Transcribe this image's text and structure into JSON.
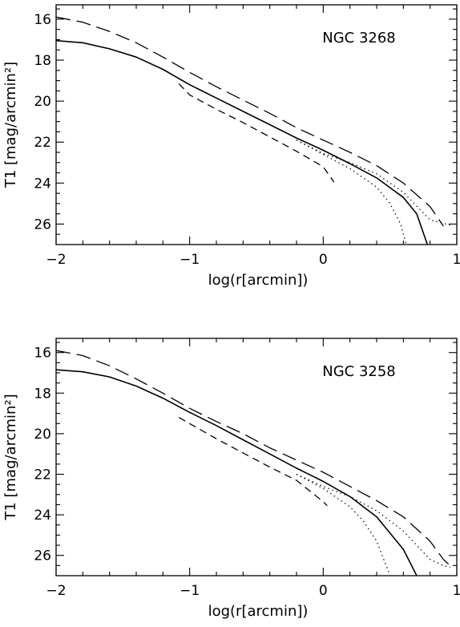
{
  "chart_data": [
    {
      "type": "line",
      "annotation": "NGC 3268",
      "xlabel": "log(r[arcmin])",
      "ylabel": "T1 [mag/arcmin²]",
      "xlim": [
        -2,
        1
      ],
      "ylim": [
        27,
        15.3
      ],
      "y_inverted": true,
      "grid": false,
      "x_ticks": [
        -2,
        -1,
        0,
        1
      ],
      "x_tick_labels": [
        "−2",
        "−1",
        "0",
        "1"
      ],
      "y_ticks": [
        16,
        18,
        20,
        22,
        24,
        26
      ],
      "y_tick_labels": [
        "16",
        "18",
        "20",
        "22",
        "24",
        "26"
      ],
      "series": [
        {
          "style": "solid",
          "x": [
            -2,
            -1.8,
            -1.6,
            -1.4,
            -1.2,
            -1.0,
            -0.8,
            -0.6,
            -0.4,
            -0.2,
            0.0,
            0.2,
            0.4,
            0.6,
            0.7,
            0.78
          ],
          "y": [
            17.05,
            17.15,
            17.45,
            17.85,
            18.45,
            19.2,
            19.85,
            20.5,
            21.15,
            21.8,
            22.4,
            23.05,
            23.75,
            24.7,
            25.5,
            27.0
          ]
        },
        {
          "style": "long-dash",
          "x": [
            -2,
            -1.8,
            -1.6,
            -1.4,
            -1.2,
            -1.0,
            -0.8,
            -0.6,
            -0.4,
            -0.2,
            0.0,
            0.2,
            0.4,
            0.6,
            0.8,
            0.9
          ],
          "y": [
            15.9,
            16.15,
            16.6,
            17.15,
            17.85,
            18.6,
            19.3,
            19.95,
            20.6,
            21.3,
            21.9,
            22.5,
            23.15,
            24.0,
            25.15,
            26.1
          ]
        },
        {
          "style": "short-dash",
          "x": [
            -1.08,
            -1.0,
            -0.8,
            -0.6,
            -0.4,
            -0.2,
            0.0,
            0.08
          ],
          "y": [
            19.15,
            19.7,
            20.4,
            21.05,
            21.75,
            22.45,
            23.2,
            23.95
          ]
        },
        {
          "style": "dotted",
          "x": [
            -0.2,
            0.0,
            0.2,
            0.4,
            0.5,
            0.58,
            0.62
          ],
          "y": [
            21.9,
            22.6,
            23.3,
            24.2,
            25.0,
            26.0,
            27.0
          ]
        },
        {
          "style": "dotted",
          "x": [
            -0.2,
            0.0,
            0.2,
            0.4,
            0.6,
            0.8,
            0.95
          ],
          "y": [
            21.9,
            22.55,
            23.0,
            23.55,
            24.45,
            25.8,
            26.05
          ]
        }
      ]
    },
    {
      "type": "line",
      "annotation": "NGC 3258",
      "xlabel": "log(r[arcmin])",
      "ylabel": "T1 [mag/arcmin²]",
      "xlim": [
        -2,
        1
      ],
      "ylim": [
        27,
        15.3
      ],
      "y_inverted": true,
      "grid": false,
      "x_ticks": [
        -2,
        -1,
        0,
        1
      ],
      "x_tick_labels": [
        "−2",
        "−1",
        "0",
        "1"
      ],
      "y_ticks": [
        16,
        18,
        20,
        22,
        24,
        26
      ],
      "y_tick_labels": [
        "16",
        "18",
        "20",
        "22",
        "24",
        "26"
      ],
      "series": [
        {
          "style": "solid",
          "x": [
            -2,
            -1.8,
            -1.6,
            -1.4,
            -1.2,
            -1.0,
            -0.8,
            -0.6,
            -0.4,
            -0.2,
            0.0,
            0.2,
            0.4,
            0.6,
            0.7
          ],
          "y": [
            16.85,
            16.95,
            17.2,
            17.65,
            18.25,
            18.95,
            19.6,
            20.3,
            21.0,
            21.7,
            22.35,
            23.1,
            24.1,
            25.7,
            27.0
          ]
        },
        {
          "style": "long-dash",
          "x": [
            -2,
            -1.8,
            -1.6,
            -1.4,
            -1.2,
            -1.0,
            -0.8,
            -0.6,
            -0.4,
            -0.2,
            0.0,
            0.2,
            0.4,
            0.6,
            0.8,
            0.9,
            0.95
          ],
          "y": [
            15.9,
            16.15,
            16.65,
            17.3,
            18.0,
            18.75,
            19.4,
            20.0,
            20.7,
            21.3,
            21.9,
            22.6,
            23.3,
            24.1,
            25.3,
            26.2,
            26.5
          ]
        },
        {
          "style": "short-dash",
          "x": [
            -1.08,
            -1.0,
            -0.8,
            -0.6,
            -0.4,
            -0.2,
            0.0,
            0.03
          ],
          "y": [
            19.2,
            19.5,
            20.25,
            20.95,
            21.65,
            22.3,
            23.35,
            23.55
          ]
        },
        {
          "style": "dotted",
          "x": [
            -0.2,
            0.0,
            0.2,
            0.3,
            0.4,
            0.5
          ],
          "y": [
            22.0,
            22.7,
            23.6,
            24.3,
            25.3,
            27.0
          ]
        },
        {
          "style": "dotted",
          "x": [
            -0.2,
            0.0,
            0.2,
            0.4,
            0.6,
            0.8,
            0.9,
            0.95
          ],
          "y": [
            22.0,
            22.6,
            23.1,
            23.8,
            24.8,
            26.2,
            26.5,
            26.6
          ]
        }
      ]
    }
  ]
}
